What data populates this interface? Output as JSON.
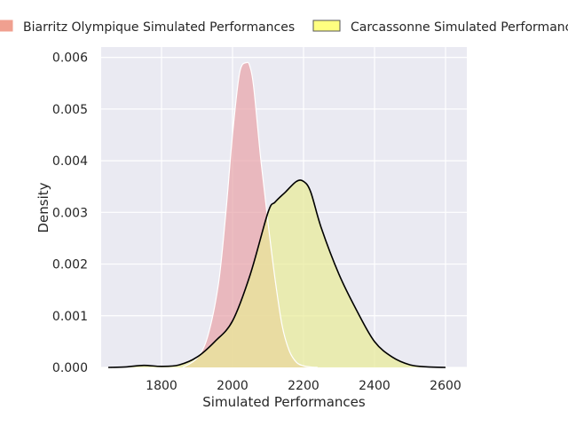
{
  "chart_data": {
    "type": "area",
    "xlabel": "Simulated Performances",
    "ylabel": "Density",
    "xlim": [
      1630,
      2660
    ],
    "ylim": [
      0,
      0.0062
    ],
    "grid": true,
    "legend_position": "top",
    "x_ticks": [
      "1800",
      "2000",
      "2200",
      "2400",
      "2600"
    ],
    "x_tick_values": [
      1800,
      2000,
      2200,
      2400,
      2600
    ],
    "y_ticks": [
      "0.000",
      "0.001",
      "0.002",
      "0.003",
      "0.004",
      "0.005",
      "0.006"
    ],
    "y_tick_values": [
      0,
      0.001,
      0.002,
      0.003,
      0.004,
      0.005,
      0.006
    ],
    "series": [
      {
        "name": "Biarritz Olympique Simulated Performances",
        "fill_color": "#e8a3a8",
        "legend_color": "#f0a090",
        "line_color": "#ffffff",
        "x": [
          1860,
          1900,
          1930,
          1960,
          1980,
          2000,
          2020,
          2040,
          2050,
          2060,
          2080,
          2100,
          2120,
          2140,
          2160,
          2180,
          2200,
          2220,
          2240
        ],
        "y": [
          0.0,
          0.00018,
          0.0006,
          0.0016,
          0.0029,
          0.0045,
          0.0057,
          0.0059,
          0.0058,
          0.0054,
          0.004,
          0.0028,
          0.0017,
          0.0008,
          0.00032,
          0.0001,
          3e-05,
          1e-05,
          0.0
        ]
      },
      {
        "name": "Carcassonne Simulated Performances",
        "fill_color": "#e8eb96",
        "legend_color": "#ffff80",
        "line_color": "#000000",
        "x": [
          1650,
          1700,
          1750,
          1800,
          1850,
          1900,
          1950,
          2000,
          2050,
          2100,
          2120,
          2150,
          2180,
          2200,
          2220,
          2250,
          2300,
          2350,
          2400,
          2450,
          2500,
          2550,
          2600
        ],
        "y": [
          0.0,
          1e-05,
          4e-05,
          2e-05,
          5e-05,
          0.0002,
          0.0005,
          0.0009,
          0.0018,
          0.003,
          0.0032,
          0.0034,
          0.0036,
          0.0036,
          0.0034,
          0.0027,
          0.0018,
          0.0011,
          0.0005,
          0.0002,
          5e-05,
          1e-05,
          0.0
        ]
      }
    ],
    "overlap_color": "#ebbd91"
  }
}
